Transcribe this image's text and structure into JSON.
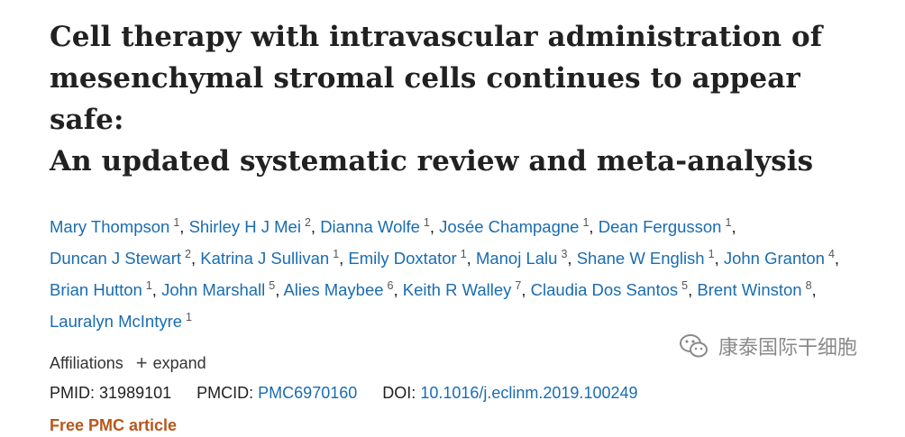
{
  "title_lines": [
    "Cell therapy with intravascular administration of",
    "mesenchymal stromal cells continues to appear safe:",
    "An updated systematic review and meta-analysis"
  ],
  "authors": [
    {
      "name": "Mary Thompson",
      "aff": "1"
    },
    {
      "name": "Shirley H J Mei",
      "aff": "2"
    },
    {
      "name": "Dianna Wolfe",
      "aff": "1"
    },
    {
      "name": "Josée Champagne",
      "aff": "1"
    },
    {
      "name": "Dean Fergusson",
      "aff": "1"
    },
    {
      "name": "Duncan J Stewart",
      "aff": "2"
    },
    {
      "name": "Katrina J Sullivan",
      "aff": "1"
    },
    {
      "name": "Emily Doxtator",
      "aff": "1"
    },
    {
      "name": "Manoj Lalu",
      "aff": "3"
    },
    {
      "name": "Shane W English",
      "aff": "1"
    },
    {
      "name": "John Granton",
      "aff": "4"
    },
    {
      "name": "Brian Hutton",
      "aff": "1"
    },
    {
      "name": "John Marshall",
      "aff": "5"
    },
    {
      "name": "Alies Maybee",
      "aff": "6"
    },
    {
      "name": "Keith R Walley",
      "aff": "7"
    },
    {
      "name": "Claudia Dos Santos",
      "aff": "5"
    },
    {
      "name": "Brent Winston",
      "aff": "8"
    },
    {
      "name": "Lauralyn McIntyre",
      "aff": "1"
    }
  ],
  "affiliations": {
    "label": "Affiliations",
    "expand_label": "expand"
  },
  "ids": {
    "pmid_label": "PMID:",
    "pmid": "31989101",
    "pmcid_label": "PMCID:",
    "pmcid": "PMC6970160",
    "doi_label": "DOI:",
    "doi": "10.1016/j.eclinm.2019.100249"
  },
  "free_article": "Free PMC article",
  "watermark": {
    "text": "康泰国际干细胞",
    "icon": "wechat-icon"
  }
}
